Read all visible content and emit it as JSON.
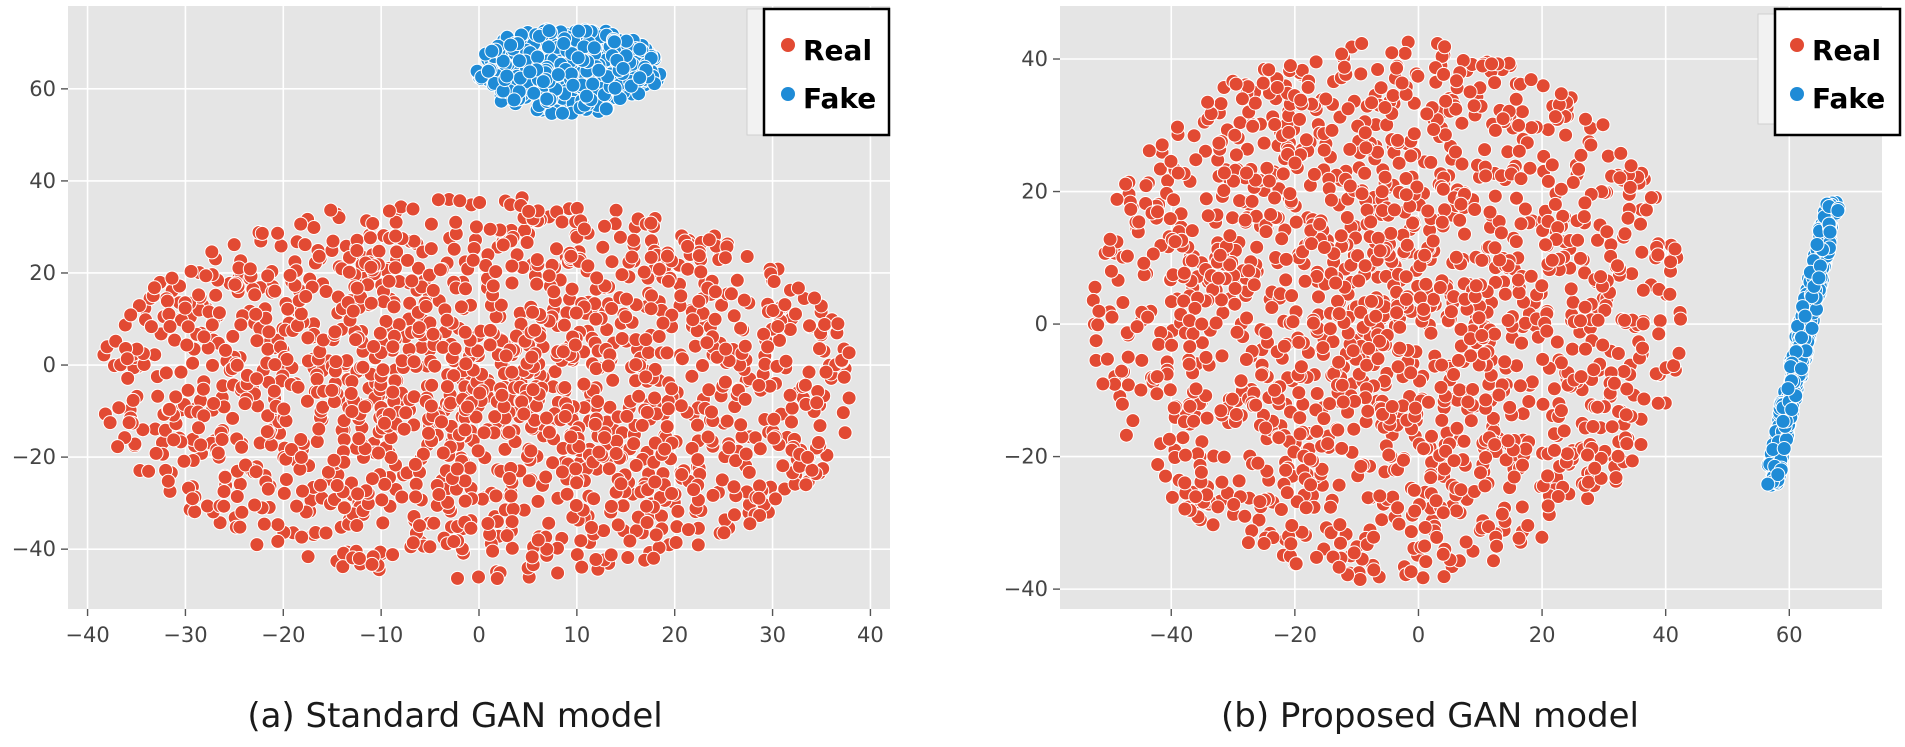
{
  "colors": {
    "real": "#e24a33",
    "fake": "#1f8bd6",
    "plot_bg": "#e5e5e5",
    "grid": "#ffffff",
    "marker_edge": "#ffffff"
  },
  "chart_data": [
    {
      "type": "scatter",
      "caption": "(a) Standard GAN model",
      "xlim": [
        -42,
        42
      ],
      "ylim": [
        -53,
        78
      ],
      "xticks": [
        -40,
        -30,
        -20,
        -10,
        0,
        10,
        20,
        30,
        40
      ],
      "yticks": [
        -40,
        -20,
        0,
        20,
        40,
        60
      ],
      "grid": true,
      "legend_position": "top-right",
      "series": [
        {
          "name": "Real",
          "color": "#e24a33",
          "shape": "ellipse",
          "center": [
            0,
            -5
          ],
          "radii": [
            39,
            42
          ],
          "approx_count": 1650
        },
        {
          "name": "Fake",
          "color": "#1f8bd6",
          "shape": "ellipse",
          "center": [
            9,
            64
          ],
          "radii": [
            9.5,
            9.5
          ],
          "approx_count": 420
        }
      ]
    },
    {
      "type": "scatter",
      "caption": "(b) Proposed GAN model",
      "xlim": [
        -58,
        75
      ],
      "ylim": [
        -43,
        48
      ],
      "xticks": [
        -40,
        -20,
        0,
        20,
        40,
        60
      ],
      "yticks": [
        -40,
        -20,
        0,
        20,
        40
      ],
      "grid": true,
      "legend_position": "top-right",
      "series": [
        {
          "name": "Real",
          "color": "#e24a33",
          "shape": "ellipse",
          "center": [
            -5,
            2
          ],
          "radii": [
            48,
            41
          ],
          "approx_count": 1650
        },
        {
          "name": "Fake",
          "color": "#1f8bd6",
          "shape": "band",
          "from": [
            57,
            -24
          ],
          "to": [
            67,
            18
          ],
          "width": 2.2,
          "approx_count": 420
        }
      ]
    }
  ]
}
